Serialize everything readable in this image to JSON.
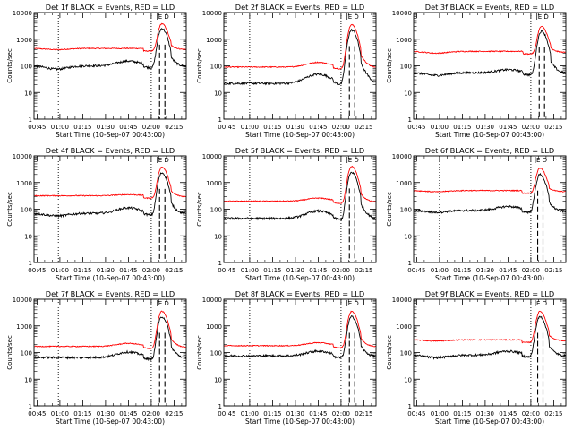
{
  "figure": {
    "xlabel": "Start Time (10-Sep-07 00:43:00)",
    "ylabel": "Counts/sec",
    "x_tick_labels": [
      "00:45",
      "01:00",
      "01:15",
      "01:30",
      "01:45",
      "02:00",
      "02:15"
    ],
    "y_tick_labels": [
      "1",
      "10",
      "100",
      "1000",
      "10000"
    ],
    "time_marker_labels": [
      "E",
      "D"
    ],
    "series_colors": {
      "events": "#000000",
      "lld": "#ff0000"
    }
  },
  "chart_data": [
    {
      "type": "line",
      "title": "Det 1f BLACK = Events, RED = LLD",
      "xlabel": "Start Time (10-Sep-07 00:43:00)",
      "ylabel": "Counts/sec",
      "yscale": "log",
      "ylim": [
        1,
        10000
      ],
      "xlim": [
        "00:43",
        "02:23"
      ],
      "dotted_time_markers": [
        "00:59",
        "02:00"
      ],
      "series": [
        {
          "color": "#ff0000",
          "baseline": 450,
          "dip": 0.9,
          "peak": 3800,
          "peak_time": "02:07"
        },
        {
          "color": "#000000",
          "baseline": 100,
          "dip": 0.75,
          "hump": 1.5,
          "peak": 2500,
          "peak_time": "02:07"
        }
      ]
    },
    {
      "type": "line",
      "title": "Det 2f BLACK = Events, RED = LLD",
      "xlabel": "Start Time (10-Sep-07 00:43:00)",
      "ylabel": "Counts/sec",
      "yscale": "log",
      "ylim": [
        1,
        10000
      ],
      "xlim": [
        "00:43",
        "02:23"
      ],
      "dotted_time_markers": [
        "01:00",
        "02:00"
      ],
      "series": [
        {
          "color": "#ff0000",
          "baseline": 90,
          "hump": 1.5,
          "peak": 3500,
          "peak_time": "02:07"
        },
        {
          "color": "#000000",
          "baseline": 22,
          "hump": 2.2,
          "peak": 2200,
          "peak_time": "02:07"
        }
      ]
    },
    {
      "type": "line",
      "title": "Det 3f BLACK = Events, RED = LLD",
      "xlabel": "Start Time (10-Sep-07 00:43:00)",
      "ylabel": "Counts/sec",
      "yscale": "log",
      "ylim": [
        1,
        10000
      ],
      "xlim": [
        "00:43",
        "02:23"
      ],
      "dotted_time_markers": [
        "02:00"
      ],
      "series": [
        {
          "color": "#ff0000",
          "baseline": 350,
          "dip": 0.85,
          "peak": 3000,
          "peak_time": "02:07"
        },
        {
          "color": "#000000",
          "baseline": 55,
          "dip": 0.8,
          "hump": 1.3,
          "peak": 2000,
          "peak_time": "02:07"
        }
      ]
    },
    {
      "type": "line",
      "title": "Det 4f BLACK = Events, RED = LLD",
      "xlabel": "Start Time (10-Sep-07 00:43:00)",
      "ylabel": "Counts/sec",
      "yscale": "log",
      "ylim": [
        1,
        10000
      ],
      "xlim": [
        "00:43",
        "02:23"
      ],
      "dotted_time_markers": [
        "00:59",
        "02:00"
      ],
      "series": [
        {
          "color": "#ff0000",
          "baseline": 320,
          "hump": 1.1,
          "peak": 3800,
          "peak_time": "02:07"
        },
        {
          "color": "#000000",
          "baseline": 70,
          "dip": 0.8,
          "hump": 1.6,
          "peak": 2300,
          "peak_time": "02:07"
        }
      ]
    },
    {
      "type": "line",
      "title": "Det 5f BLACK = Events, RED = LLD",
      "xlabel": "Start Time (10-Sep-07 00:43:00)",
      "ylabel": "Counts/sec",
      "yscale": "log",
      "ylim": [
        1,
        10000
      ],
      "xlim": [
        "00:43",
        "02:23"
      ],
      "dotted_time_markers": [
        "01:00",
        "02:00"
      ],
      "series": [
        {
          "color": "#ff0000",
          "baseline": 200,
          "hump": 1.3,
          "peak": 4000,
          "peak_time": "02:07"
        },
        {
          "color": "#000000",
          "baseline": 45,
          "hump": 1.9,
          "peak": 2400,
          "peak_time": "02:07"
        }
      ]
    },
    {
      "type": "line",
      "title": "Det 6f BLACK = Events, RED = LLD",
      "xlabel": "Start Time (10-Sep-07 00:43:00)",
      "ylabel": "Counts/sec",
      "yscale": "log",
      "ylim": [
        1,
        10000
      ],
      "xlim": [
        "00:43",
        "02:23"
      ],
      "dotted_time_markers": [
        "01:00",
        "02:00"
      ],
      "series": [
        {
          "color": "#ff0000",
          "baseline": 500,
          "dip": 0.9,
          "peak": 3500,
          "peak_time": "02:06"
        },
        {
          "color": "#000000",
          "baseline": 90,
          "dip": 0.85,
          "hump": 1.4,
          "peak": 2000,
          "peak_time": "02:06"
        }
      ]
    },
    {
      "type": "line",
      "title": "Det 7f BLACK = Events, RED = LLD",
      "xlabel": "Start Time (10-Sep-07 00:43:00)",
      "ylabel": "Counts/sec",
      "yscale": "log",
      "ylim": [
        1,
        10000
      ],
      "xlim": [
        "00:43",
        "02:23"
      ],
      "dotted_time_markers": [
        "00:59",
        "02:00"
      ],
      "series": [
        {
          "color": "#ff0000",
          "baseline": 170,
          "hump": 1.3,
          "peak": 3500,
          "peak_time": "02:07"
        },
        {
          "color": "#000000",
          "baseline": 65,
          "hump": 1.6,
          "peak": 2200,
          "peak_time": "02:07"
        }
      ]
    },
    {
      "type": "line",
      "title": "Det 8f BLACK = Events, RED = LLD",
      "xlabel": "Start Time (10-Sep-07 00:43:00)",
      "ylabel": "Counts/sec",
      "yscale": "log",
      "ylim": [
        1,
        10000
      ],
      "xlim": [
        "00:43",
        "02:23"
      ],
      "dotted_time_markers": [
        "01:00",
        "02:00"
      ],
      "series": [
        {
          "color": "#ff0000",
          "baseline": 180,
          "hump": 1.3,
          "peak": 3500,
          "peak_time": "02:07"
        },
        {
          "color": "#000000",
          "baseline": 75,
          "hump": 1.5,
          "peak": 2200,
          "peak_time": "02:07"
        }
      ]
    },
    {
      "type": "line",
      "title": "Det 9f BLACK = Events, RED = LLD",
      "xlabel": "Start Time (10-Sep-07 00:43:00)",
      "ylabel": "Counts/sec",
      "yscale": "log",
      "ylim": [
        1,
        10000
      ],
      "xlim": [
        "00:43",
        "02:23"
      ],
      "dotted_time_markers": [
        "02:00"
      ],
      "series": [
        {
          "color": "#ff0000",
          "baseline": 300,
          "dip": 0.9,
          "peak": 3500,
          "peak_time": "02:06"
        },
        {
          "color": "#000000",
          "baseline": 80,
          "dip": 0.8,
          "hump": 1.4,
          "peak": 2200,
          "peak_time": "02:06"
        }
      ]
    }
  ]
}
